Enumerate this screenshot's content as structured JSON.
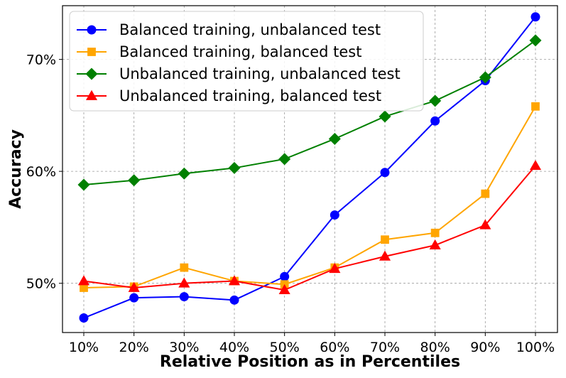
{
  "chart_data": {
    "type": "line",
    "title": "",
    "xlabel": "Relative Position as in Percentiles",
    "ylabel": "Accuracy",
    "categories": [
      "10%",
      "20%",
      "30%",
      "40%",
      "50%",
      "60%",
      "70%",
      "80%",
      "90%",
      "100%"
    ],
    "ylim": [
      0.456,
      0.748
    ],
    "yticks": [
      0.5,
      0.6,
      0.7
    ],
    "ytick_labels": [
      "50%",
      "60%",
      "70%"
    ],
    "grid": true,
    "legend_position": "top-left",
    "series": [
      {
        "name": "Balanced training, unbalanced test",
        "color": "#0000ff",
        "marker": "circle",
        "values": [
          0.469,
          0.487,
          0.488,
          0.485,
          0.506,
          0.561,
          0.599,
          0.645,
          0.681,
          0.738
        ]
      },
      {
        "name": "Balanced training, balanced test",
        "color": "#ffa500",
        "marker": "square",
        "values": [
          0.496,
          0.497,
          0.514,
          0.502,
          0.499,
          0.514,
          0.539,
          0.545,
          0.58,
          0.658
        ]
      },
      {
        "name": "Unbalanced training, unbalanced test",
        "color": "#008000",
        "marker": "diamond",
        "values": [
          0.588,
          0.592,
          0.598,
          0.603,
          0.611,
          0.629,
          0.649,
          0.663,
          0.684,
          0.717
        ]
      },
      {
        "name": "Unbalanced training, balanced test",
        "color": "#ff0000",
        "marker": "triangle",
        "values": [
          0.502,
          0.496,
          0.5,
          0.502,
          0.494,
          0.513,
          0.524,
          0.534,
          0.552,
          0.605
        ]
      }
    ]
  }
}
